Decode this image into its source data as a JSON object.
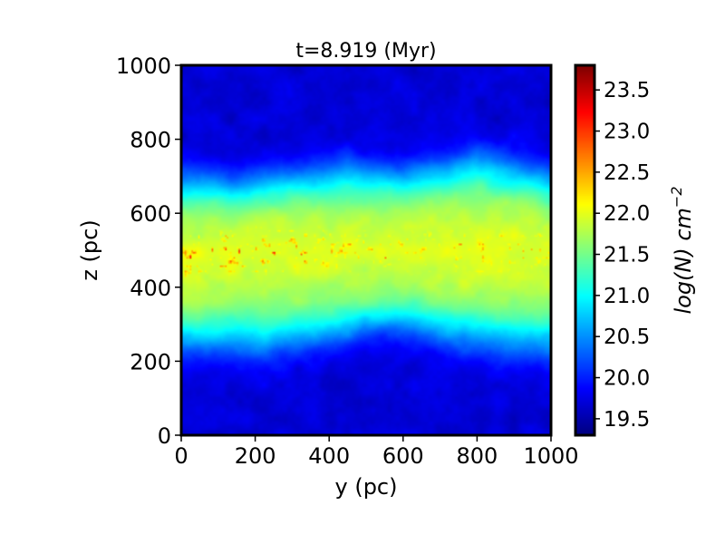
{
  "chart_data": {
    "type": "heatmap",
    "title": "t=8.919 (Myr)",
    "xlabel": "y (pc)",
    "ylabel": "z (pc)",
    "xlim": [
      0,
      1000
    ],
    "ylim": [
      0,
      1000
    ],
    "xticks": [
      0,
      200,
      400,
      600,
      800,
      1000
    ],
    "yticks": [
      0,
      200,
      400,
      600,
      800,
      1000
    ],
    "xtick_labels": [
      "0",
      "200",
      "400",
      "600",
      "800",
      "1000"
    ],
    "ytick_labels": [
      "0",
      "200",
      "400",
      "600",
      "800",
      "1000"
    ],
    "colorbar": {
      "label_text": "log(N) cm",
      "label_exponent": "−2",
      "colormap": "jet",
      "range": [
        19.3,
        23.8
      ],
      "ticks": [
        19.5,
        20.0,
        20.5,
        21.0,
        21.5,
        22.0,
        22.5,
        23.0,
        23.5
      ],
      "tick_labels": [
        "19.5",
        "20.0",
        "20.5",
        "21.0",
        "21.5",
        "22.0",
        "22.5",
        "23.0",
        "23.5"
      ]
    },
    "field": {
      "description_values": "log column density vs (y, z); dense slab centred near z≈490 pc",
      "background": 19.7,
      "layer_center_z": [
        [
          0,
          480
        ],
        [
          200,
          500
        ],
        [
          400,
          500
        ],
        [
          600,
          500
        ],
        [
          800,
          500
        ],
        [
          1000,
          500
        ]
      ],
      "layer_top_z": [
        [
          0,
          715
        ],
        [
          150,
          705
        ],
        [
          300,
          730
        ],
        [
          450,
          745
        ],
        [
          600,
          730
        ],
        [
          800,
          775
        ],
        [
          950,
          740
        ],
        [
          1000,
          720
        ]
      ],
      "layer_bottom_z": [
        [
          0,
          215
        ],
        [
          200,
          205
        ],
        [
          400,
          240
        ],
        [
          580,
          280
        ],
        [
          750,
          230
        ],
        [
          900,
          210
        ],
        [
          1000,
          205
        ]
      ],
      "peak_value": 22.0,
      "clump_max": 23.6
    }
  }
}
